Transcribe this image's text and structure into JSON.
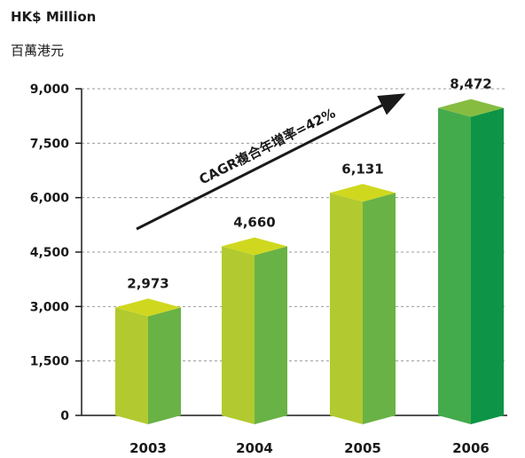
{
  "title": "HK$ Million",
  "subtitle": "百萬港元",
  "chart_data": {
    "type": "bar",
    "categories": [
      "2003",
      "2004",
      "2005",
      "2006"
    ],
    "values": [
      2973,
      4660,
      6131,
      8472
    ],
    "value_labels": [
      "2,973",
      "4,660",
      "6,131",
      "8,472"
    ],
    "yticks": [
      0,
      1500,
      3000,
      4500,
      6000,
      7500,
      9000
    ],
    "ytick_labels": [
      "0",
      "1,500",
      "3,000",
      "4,500",
      "6,000",
      "7,500",
      "9,000"
    ],
    "ylim": [
      0,
      9000
    ],
    "grid": true,
    "gridline_style": "dashed",
    "annotation": "CAGR複合年增率=42%",
    "bar_colors": [
      {
        "top": "#cfd81f",
        "front": "#b2ca2f",
        "side": "#69b245"
      },
      {
        "top": "#cfd81f",
        "front": "#b2ca2f",
        "side": "#69b245"
      },
      {
        "top": "#cfd81f",
        "front": "#b2ca2f",
        "side": "#69b245"
      },
      {
        "top": "#86bd40",
        "front": "#44ab4d",
        "side": "#0e9446"
      }
    ]
  }
}
